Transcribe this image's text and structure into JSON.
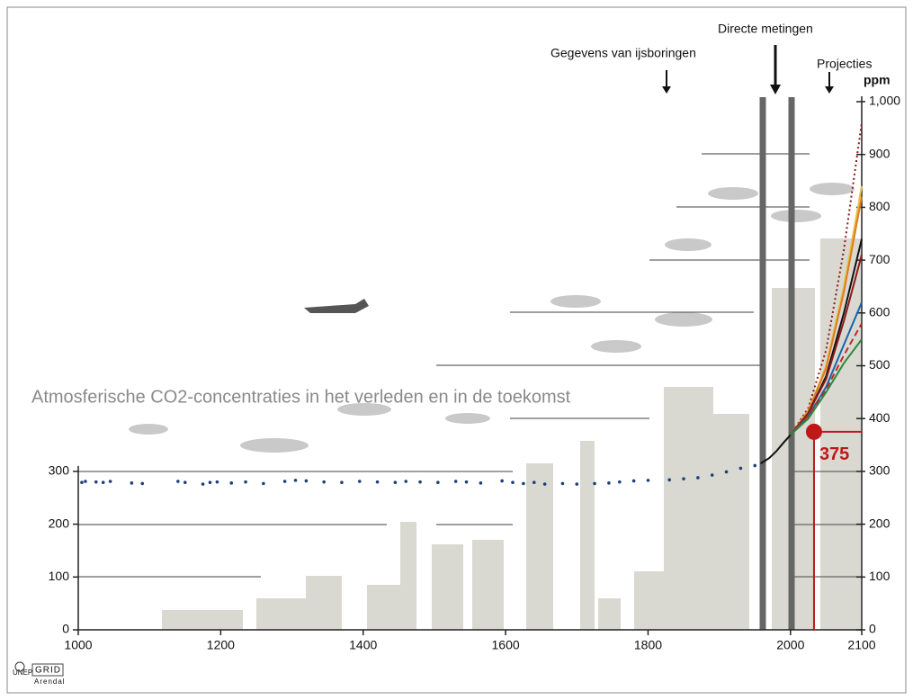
{
  "chart_data": {
    "type": "line",
    "title": "Atmosferische CO2-concentraties in het verleden en in de toekomst",
    "ylabel": "ppm",
    "annotations": [
      "Gegevens van ijsboringen",
      "Directe metingen",
      "Projecties"
    ],
    "xlim": [
      1000,
      2100
    ],
    "xticks": [
      1000,
      1200,
      1400,
      1600,
      1800,
      2000,
      2100
    ],
    "ylim": [
      0,
      1000
    ],
    "yticks": [
      0,
      100,
      200,
      300
    ],
    "y2lim": [
      0,
      1000
    ],
    "y2ticks": [
      0,
      100,
      200,
      300,
      400,
      500,
      600,
      700,
      800,
      900,
      {
        "value": 1000,
        "label": "1,000"
      }
    ],
    "series": [
      {
        "style": "dots",
        "color": "#1c3f7a",
        "x": [
          1005,
          1010,
          1025,
          1035,
          1045,
          1075,
          1090,
          1140,
          1150,
          1175,
          1185,
          1195,
          1215,
          1235,
          1260,
          1290,
          1305,
          1320,
          1345,
          1370,
          1395,
          1420,
          1445,
          1460,
          1480,
          1505,
          1530,
          1545,
          1565,
          1595,
          1610,
          1625,
          1640,
          1655,
          1680,
          1700,
          1725,
          1745,
          1760,
          1780,
          1800,
          1830,
          1850,
          1870,
          1890,
          1910,
          1930,
          1950
        ],
        "values": [
          279,
          281,
          280,
          279,
          281,
          278,
          277,
          281,
          279,
          276,
          279,
          280,
          278,
          280,
          277,
          281,
          283,
          282,
          280,
          279,
          281,
          280,
          279,
          281,
          280,
          279,
          281,
          280,
          278,
          282,
          279,
          277,
          279,
          276,
          277,
          276,
          277,
          278,
          280,
          282,
          283,
          284,
          286,
          288,
          293,
          299,
          306,
          311
        ]
      },
      {
        "style": "solid",
        "color": "#111111",
        "x": [
          1958,
          1970,
          1980,
          1990,
          2000
        ],
        "values": [
          315,
          325,
          338,
          354,
          369
        ]
      },
      {
        "style": "dotted",
        "color": "#8b1a1a",
        "x": [
          2000,
          2025,
          2050,
          2075,
          2100
        ],
        "values": [
          369,
          420,
          530,
          720,
          960
        ]
      },
      {
        "style": "solid",
        "color": "#e8c040",
        "x": [
          2000,
          2025,
          2050,
          2075,
          2100
        ],
        "values": [
          369,
          415,
          500,
          650,
          840
        ]
      },
      {
        "style": "solid",
        "color": "#e07a20",
        "x": [
          2000,
          2025,
          2050,
          2075,
          2100
        ],
        "values": [
          369,
          414,
          495,
          640,
          820
        ]
      },
      {
        "style": "solid",
        "color": "#111111",
        "x": [
          2000,
          2025,
          2050,
          2075,
          2100
        ],
        "values": [
          369,
          410,
          480,
          600,
          740
        ]
      },
      {
        "style": "solid",
        "color": "#8b1a1a",
        "x": [
          2000,
          2025,
          2050,
          2075,
          2100
        ],
        "values": [
          369,
          410,
          475,
          585,
          710
        ]
      },
      {
        "style": "solid",
        "color": "#1a64b0",
        "x": [
          2000,
          2025,
          2050,
          2075,
          2100
        ],
        "values": [
          369,
          405,
          460,
          540,
          620
        ]
      },
      {
        "style": "dashed",
        "color": "#c0282a",
        "x": [
          2000,
          2025,
          2050,
          2075,
          2100
        ],
        "values": [
          369,
          405,
          455,
          520,
          580
        ]
      },
      {
        "style": "solid",
        "color": "#2a8a3a",
        "x": [
          2000,
          2025,
          2050,
          2075,
          2100
        ],
        "values": [
          369,
          400,
          450,
          505,
          550
        ]
      }
    ],
    "marker": {
      "x": 2033,
      "value": 375,
      "color": "#c01818"
    }
  },
  "logo": {
    "org": "UNEP",
    "name": "GRID",
    "place": "Arendal"
  }
}
